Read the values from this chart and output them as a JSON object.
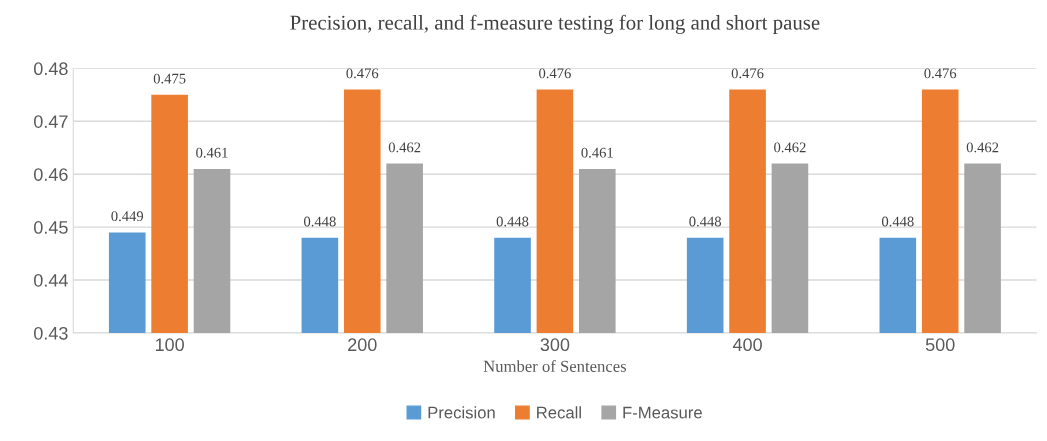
{
  "chart_data": {
    "type": "bar",
    "title": "Precision, recall, and f-measure testing for long and short pause",
    "xlabel": "Number of Sentences",
    "categories": [
      "100",
      "200",
      "300",
      "400",
      "500"
    ],
    "series": [
      {
        "name": "Precision",
        "color": "#5b9bd5",
        "values": [
          0.449,
          0.448,
          0.448,
          0.448,
          0.448
        ]
      },
      {
        "name": "Recall",
        "color": "#ed7d31",
        "values": [
          0.475,
          0.476,
          0.476,
          0.476,
          0.476
        ]
      },
      {
        "name": "F-Measure",
        "color": "#a5a5a5",
        "values": [
          0.461,
          0.462,
          0.461,
          0.462,
          0.462
        ]
      }
    ],
    "ylim": [
      0.43,
      0.48
    ],
    "yticks": [
      0.43,
      0.44,
      0.45,
      0.46,
      0.47,
      0.48
    ],
    "grid": "y",
    "legend": "bottom",
    "data_labels": true
  }
}
